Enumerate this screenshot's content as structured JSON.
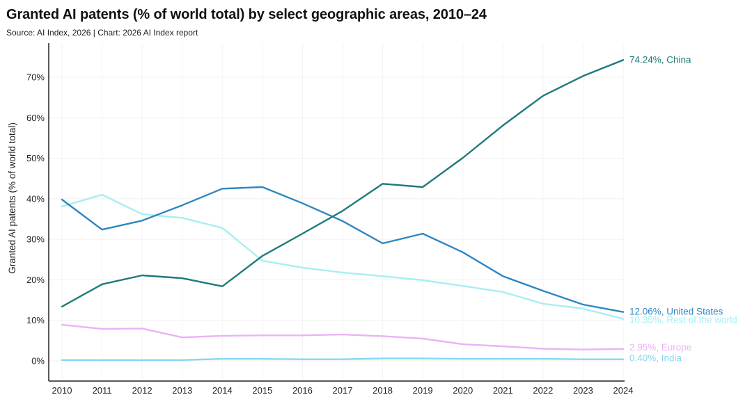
{
  "header": {
    "title": "Granted AI patents (% of world total) by select geographic areas, 2010–24",
    "subtitle": "Source: AI Index, 2026 | Chart: 2026 AI Index report"
  },
  "chart_data": {
    "type": "line",
    "title": "Granted AI patents (% of world total) by select geographic areas, 2010–24",
    "subtitle": "Source: AI Index, 2026 | Chart: 2026 AI Index report",
    "xlabel": "",
    "ylabel": "Granted AI patents (% of world total)",
    "x": [
      2010,
      2011,
      2012,
      2013,
      2014,
      2015,
      2016,
      2017,
      2018,
      2019,
      2020,
      2021,
      2022,
      2023,
      2024
    ],
    "x_tick_labels": [
      "2010",
      "2011",
      "2012",
      "2013",
      "2014",
      "2015",
      "2016",
      "2017",
      "2018",
      "2019",
      "2020",
      "2021",
      "2022",
      "2023",
      "2024"
    ],
    "ylim": [
      -4,
      78
    ],
    "y_ticks": [
      0,
      10,
      20,
      30,
      40,
      50,
      60,
      70
    ],
    "y_tick_labels": [
      "0%",
      "10%",
      "20%",
      "30%",
      "40%",
      "50%",
      "60%",
      "70%"
    ],
    "grid": true,
    "legend": "end-of-line labels (right)",
    "series": [
      {
        "name": "China",
        "color": "#1f7a7a",
        "end_label": "74.24%, China",
        "values": [
          13.4,
          18.9,
          21.1,
          20.4,
          18.4,
          25.9,
          31.4,
          37.0,
          43.7,
          42.9,
          50.1,
          58.1,
          65.4,
          70.3,
          74.24
        ]
      },
      {
        "name": "United States",
        "color": "#2e86c1",
        "end_label": "12.06%, United States",
        "values": [
          39.8,
          32.4,
          34.6,
          38.4,
          42.5,
          42.9,
          38.9,
          34.5,
          29.0,
          31.4,
          26.8,
          20.9,
          17.3,
          13.9,
          12.06
        ]
      },
      {
        "name": "Rest of the world",
        "color": "#a8eef2",
        "end_label": "10.35%, Rest of the world",
        "values": [
          38.1,
          41.0,
          36.2,
          35.3,
          32.8,
          24.7,
          23.0,
          21.8,
          20.9,
          19.9,
          18.5,
          17.0,
          14.1,
          12.9,
          10.35
        ]
      },
      {
        "name": "Europe",
        "color": "#eab3f5",
        "end_label": "2.95%, Europe",
        "values": [
          8.9,
          7.9,
          8.0,
          5.8,
          6.2,
          6.3,
          6.3,
          6.5,
          6.1,
          5.5,
          4.1,
          3.6,
          3.0,
          2.8,
          2.95
        ]
      },
      {
        "name": "India",
        "color": "#86d8f2",
        "end_label": "0.40%, India",
        "values": [
          0.2,
          0.2,
          0.2,
          0.2,
          0.5,
          0.5,
          0.4,
          0.4,
          0.6,
          0.6,
          0.5,
          0.5,
          0.5,
          0.4,
          0.4
        ]
      }
    ]
  }
}
